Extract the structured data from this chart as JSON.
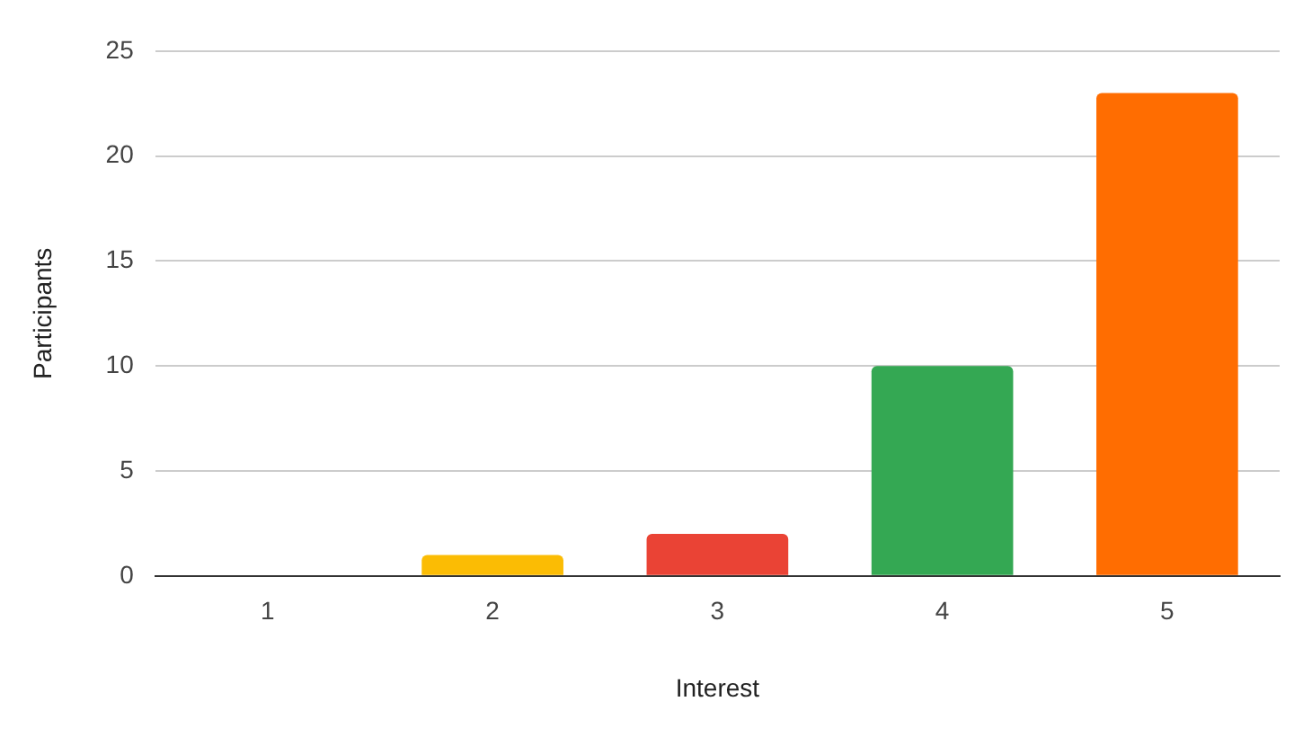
{
  "chart_data": {
    "type": "bar",
    "xlabel": "Interest",
    "ylabel": "Participants",
    "categories": [
      "1",
      "2",
      "3",
      "4",
      "5"
    ],
    "values": [
      0,
      1,
      2,
      10,
      23
    ],
    "colors": [
      "#4285f4",
      "#fbbc04",
      "#ea4335",
      "#34a853",
      "#ff6d01"
    ],
    "ylim": [
      0,
      25
    ],
    "yticks": [
      0,
      5,
      10,
      15,
      20,
      25
    ],
    "grid": "y",
    "legend": false
  }
}
